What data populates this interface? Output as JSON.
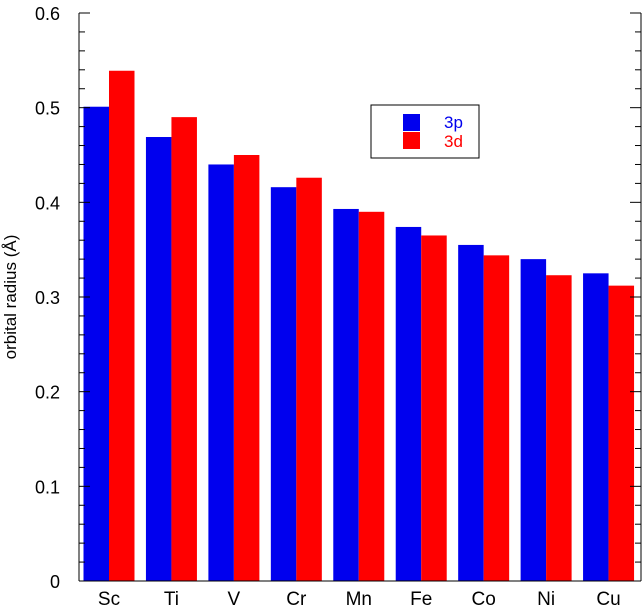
{
  "chart_data": {
    "type": "bar",
    "ylabel": "orbital radius (Å)",
    "xlabel": "",
    "ylim": [
      0,
      0.6
    ],
    "yticks": [
      "0",
      "0.1",
      "0.2",
      "0.3",
      "0.4",
      "0.5",
      "0.6"
    ],
    "categories": [
      "Sc",
      "Ti",
      "V",
      "Cr",
      "Mn",
      "Fe",
      "Co",
      "Ni",
      "Cu"
    ],
    "series": [
      {
        "name": "3p",
        "color": "#0000ee",
        "values": [
          0.501,
          0.469,
          0.44,
          0.416,
          0.393,
          0.374,
          0.355,
          0.34,
          0.325
        ]
      },
      {
        "name": "3d",
        "color": "#ff0000",
        "values": [
          0.539,
          0.49,
          0.45,
          0.426,
          0.39,
          0.365,
          0.344,
          0.323,
          0.312
        ]
      }
    ],
    "legend_position": "top-right",
    "grid": false
  }
}
